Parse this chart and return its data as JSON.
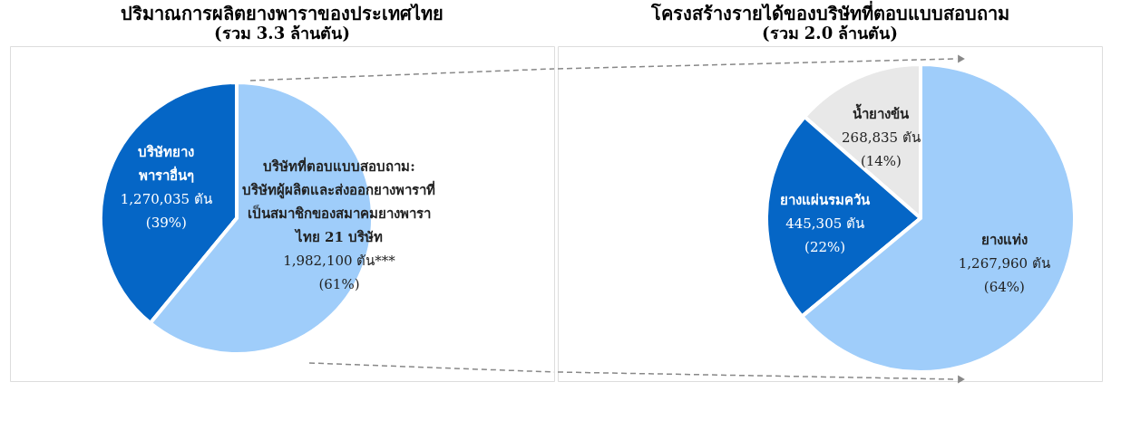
{
  "chart_data": [
    {
      "type": "pie",
      "title": "ปริมาณการผลิตยางพาราของประเทศไทย",
      "subtitle": "(รวม 3.3 ล้านตัน)",
      "categories": [
        "บริษัทยาง\nพาราอื่นๆ",
        "บริษัทที่ตอบแบบสอบถาม:\nบริษัทผู้ผลิตและส่งออกยางพาราที่\nเป็นสมาชิกของสมาคมยางพารา\nไทย 21 บริษัท"
      ],
      "values": [
        1270035,
        1982100
      ],
      "colors": [
        "#0566c6",
        "#9fcdfa"
      ],
      "value_labels": [
        "1,270,035 ตัน\n(39%)",
        "1,982,100 ตัน***\n(61%)"
      ],
      "legend": false
    },
    {
      "type": "pie",
      "title": "โครงสร้างรายได้ของบริษัทที่ตอบแบบสอบถาม",
      "subtitle": "(รวม 2.0 ล้านตัน)",
      "categories": [
        "น้ำยางข้น",
        "ยางแผ่นรมควัน",
        "ยางแท่ง"
      ],
      "values": [
        268835,
        445305,
        1267960
      ],
      "colors": [
        "#e8e8e8",
        "#0566c6",
        "#9fcdfa"
      ],
      "value_labels": [
        "268,835 ตัน\n(14%)",
        "445,305 ตัน\n(22%)",
        "1,267,960 ตัน\n(64%)"
      ],
      "legend": false
    }
  ]
}
